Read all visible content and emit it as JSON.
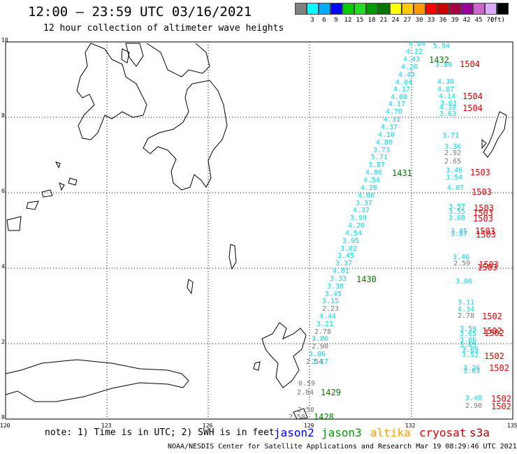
{
  "header": {
    "title": "12:00 – 23:59 UTC 03/16/2021",
    "subtitle": "12 hour collection of altimeter wave heights"
  },
  "legend": {
    "unit_label": "(ft)",
    "entries": [
      {
        "label": "",
        "color": "#808080"
      },
      {
        "label": "3",
        "color": "#00ffff"
      },
      {
        "label": "6",
        "color": "#00aaff"
      },
      {
        "label": "9",
        "color": "#0000ff"
      },
      {
        "label": "12",
        "color": "#00cc00"
      },
      {
        "label": "15",
        "color": "#22dd22"
      },
      {
        "label": "18",
        "color": "#009900"
      },
      {
        "label": "21",
        "color": "#007700"
      },
      {
        "label": "24",
        "color": "#ffff00"
      },
      {
        "label": "27",
        "color": "#ffcc00"
      },
      {
        "label": "30",
        "color": "#ff9900"
      },
      {
        "label": "33",
        "color": "#ff0000"
      },
      {
        "label": "36",
        "color": "#cc0000"
      },
      {
        "label": "39",
        "color": "#aa0044"
      },
      {
        "label": "42",
        "color": "#990099"
      },
      {
        "label": "45",
        "color": "#cc66cc"
      },
      {
        "label": "70",
        "color": "#ddaaff"
      },
      {
        "label": "",
        "color": "#000000"
      }
    ]
  },
  "axes": {
    "lon_labels": [
      "120",
      "123",
      "126",
      "129",
      "132",
      "135"
    ],
    "lat_labels": [
      "0",
      "2",
      "4",
      "6",
      "8",
      "10"
    ]
  },
  "colors": {
    "cyan": "#00d8e8",
    "gray": "#777777",
    "green": "#007a00",
    "red": "#dd0000"
  },
  "measurements": [
    {
      "v": "4.64",
      "c": "cyan"
    },
    {
      "v": "4.22",
      "c": "cyan"
    },
    {
      "v": "4.43",
      "c": "cyan"
    },
    {
      "v": "4.26",
      "c": "cyan"
    },
    {
      "v": "4.43",
      "c": "cyan"
    },
    {
      "v": "4.04",
      "c": "cyan"
    },
    {
      "v": "4.17",
      "c": "cyan"
    },
    {
      "v": "4.00",
      "c": "cyan"
    },
    {
      "v": "4.17",
      "c": "cyan"
    },
    {
      "v": "4.70",
      "c": "cyan"
    },
    {
      "v": "4.31",
      "c": "cyan"
    },
    {
      "v": "4.37",
      "c": "cyan"
    },
    {
      "v": "4.10",
      "c": "cyan"
    },
    {
      "v": "4.80",
      "c": "cyan"
    },
    {
      "v": "3.73",
      "c": "cyan"
    },
    {
      "v": "5.71",
      "c": "cyan"
    },
    {
      "v": "3.87",
      "c": "cyan"
    },
    {
      "v": "4.86",
      "c": "cyan"
    },
    {
      "v": "4.54",
      "c": "cyan"
    },
    {
      "v": "4.28",
      "c": "cyan"
    },
    {
      "v": "4.00",
      "c": "cyan"
    },
    {
      "v": "3.37",
      "c": "cyan"
    },
    {
      "v": "4.37",
      "c": "cyan"
    },
    {
      "v": "3.99",
      "c": "cyan"
    },
    {
      "v": "4.20",
      "c": "cyan"
    },
    {
      "v": "4.54",
      "c": "cyan"
    },
    {
      "v": "3.95",
      "c": "cyan"
    },
    {
      "v": "3.02",
      "c": "cyan"
    },
    {
      "v": "3.45",
      "c": "cyan"
    },
    {
      "v": "3.37",
      "c": "cyan"
    },
    {
      "v": "4.01",
      "c": "cyan"
    },
    {
      "v": "3.33",
      "c": "cyan"
    },
    {
      "v": "3.30",
      "c": "cyan"
    },
    {
      "v": "3.45",
      "c": "cyan"
    },
    {
      "v": "3.15",
      "c": "cyan"
    },
    {
      "v": "2.23",
      "c": "gray"
    },
    {
      "v": "4.44",
      "c": "cyan"
    },
    {
      "v": "3.21",
      "c": "cyan"
    },
    {
      "v": "2.78",
      "c": "gray"
    },
    {
      "v": "3.86",
      "c": "cyan"
    },
    {
      "v": "2.90",
      "c": "gray"
    },
    {
      "v": "3.86",
      "c": "cyan"
    },
    {
      "v": "3.17",
      "c": "cyan"
    },
    {
      "v": "2.54",
      "c": "gray"
    },
    {
      "v": "0.59",
      "c": "gray"
    },
    {
      "v": "2.84",
      "c": "gray"
    },
    {
      "v": "2.58",
      "c": "gray"
    },
    {
      "v": "2.58",
      "c": "gray"
    },
    {
      "v": "5.94",
      "c": "cyan"
    },
    {
      "v": "3.89",
      "c": "cyan"
    },
    {
      "v": "4.30",
      "c": "cyan"
    },
    {
      "v": "4.87",
      "c": "cyan"
    },
    {
      "v": "4.14",
      "c": "cyan"
    },
    {
      "v": "3.61",
      "c": "cyan"
    },
    {
      "v": "4.10",
      "c": "cyan"
    },
    {
      "v": "3.63",
      "c": "cyan"
    },
    {
      "v": "3.71",
      "c": "cyan"
    },
    {
      "v": "3.36",
      "c": "cyan"
    },
    {
      "v": "2.92",
      "c": "gray"
    },
    {
      "v": "2.65",
      "c": "gray"
    },
    {
      "v": "3.46",
      "c": "cyan"
    },
    {
      "v": "3.54",
      "c": "cyan"
    },
    {
      "v": "4.07",
      "c": "cyan"
    },
    {
      "v": "3.57",
      "c": "cyan"
    },
    {
      "v": "3.55",
      "c": "cyan"
    },
    {
      "v": "3.68",
      "c": "cyan"
    },
    {
      "v": "3.85",
      "c": "cyan"
    },
    {
      "v": "3.87",
      "c": "cyan"
    },
    {
      "v": "3.46",
      "c": "cyan"
    },
    {
      "v": "2.59",
      "c": "gray"
    },
    {
      "v": "3.06",
      "c": "cyan"
    },
    {
      "v": "3.11",
      "c": "cyan"
    },
    {
      "v": "4.34",
      "c": "cyan"
    },
    {
      "v": "2.78",
      "c": "gray"
    },
    {
      "v": "3.59",
      "c": "cyan"
    },
    {
      "v": "3.65",
      "c": "cyan"
    },
    {
      "v": "3.86",
      "c": "cyan"
    },
    {
      "v": "3.65",
      "c": "cyan"
    },
    {
      "v": "3.69",
      "c": "cyan"
    },
    {
      "v": "3.52",
      "c": "cyan"
    },
    {
      "v": "3.26",
      "c": "cyan"
    },
    {
      "v": "3.03",
      "c": "cyan"
    },
    {
      "v": "3.48",
      "c": "cyan"
    },
    {
      "v": "2.90",
      "c": "gray"
    }
  ],
  "passes": [
    {
      "t": "1432",
      "c": "green"
    },
    {
      "t": "1431",
      "c": "green"
    },
    {
      "t": "1430",
      "c": "green"
    },
    {
      "t": "1429",
      "c": "green"
    },
    {
      "t": "1428",
      "c": "green"
    },
    {
      "t": "1504",
      "c": "red"
    },
    {
      "t": "1504",
      "c": "red"
    },
    {
      "t": "1504",
      "c": "red"
    },
    {
      "t": "1503",
      "c": "red"
    },
    {
      "t": "1503",
      "c": "red"
    },
    {
      "t": "1503",
      "c": "red"
    },
    {
      "t": "1503",
      "c": "red"
    },
    {
      "t": "1503",
      "c": "red"
    },
    {
      "t": "1503",
      "c": "red"
    },
    {
      "t": "1503",
      "c": "red"
    },
    {
      "t": "1503",
      "c": "red"
    },
    {
      "t": "1503",
      "c": "red"
    },
    {
      "t": "1502",
      "c": "red"
    },
    {
      "t": "1502",
      "c": "red"
    },
    {
      "t": "1502",
      "c": "red"
    },
    {
      "t": "1502",
      "c": "red"
    },
    {
      "t": "1502",
      "c": "red"
    },
    {
      "t": "1502",
      "c": "red"
    },
    {
      "t": "1502",
      "c": "red"
    }
  ],
  "note": "note: 1) Time is in UTC; 2) SWH is in feet",
  "satellites": [
    {
      "name": "jason2",
      "color": "#0000ee"
    },
    {
      "name": "jason3",
      "color": "#009900"
    },
    {
      "name": "altika",
      "color": "#ff9900"
    },
    {
      "name": "cryosat",
      "color": "#dd0000"
    },
    {
      "name": "s3a",
      "color": "#aa0000"
    }
  ],
  "footer": "NOAA/NESDIS Center for Satellite Applications and Research   Mar 19 08:29:46 UTC 2021"
}
